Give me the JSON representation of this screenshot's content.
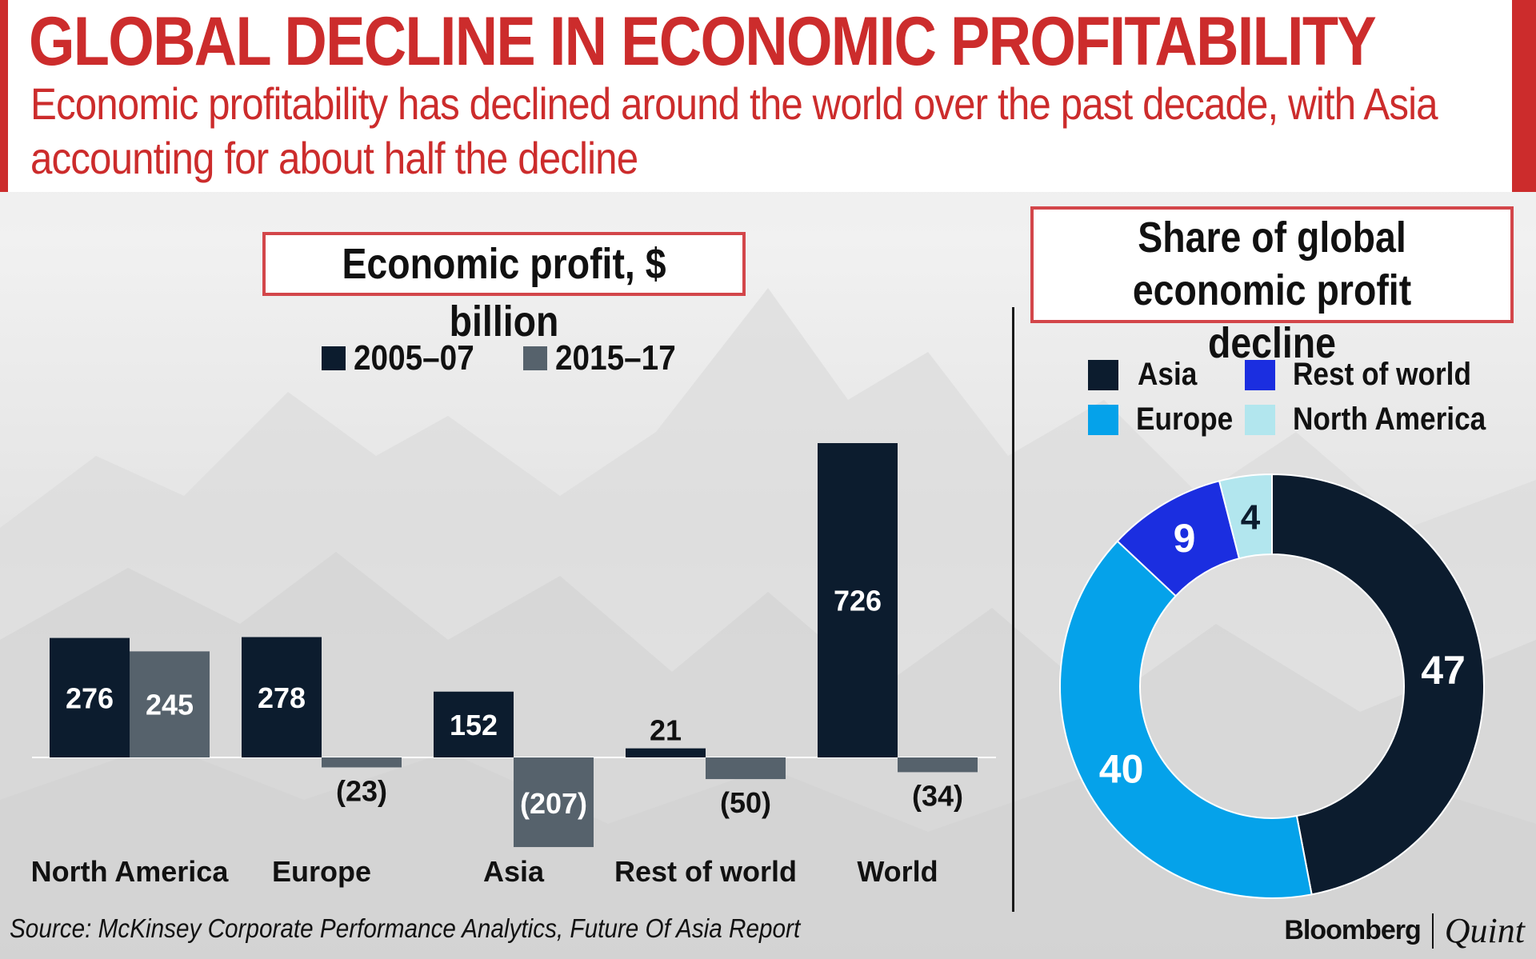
{
  "header": {
    "title": "GLOBAL DECLINE IN ECONOMIC PROFITABILITY",
    "subtitle": "Economic profitability has declined around the world over the past decade, with Asia accounting for about half the decline"
  },
  "colors": {
    "accent_red": "#cc2c2c",
    "series_2005": "#0c1c2e",
    "series_2015": "#56626c",
    "asia": "#0c1c2e",
    "europe": "#05a2ea",
    "rest_of_world": "#1b2ee0",
    "north_america": "#b2e6ee"
  },
  "footer": {
    "source": "Source: McKinsey Corporate Performance Analytics, Future Of Asia Report",
    "brand_bloomberg": "Bloomberg",
    "brand_quint": "Quint"
  },
  "chart_data": [
    {
      "type": "bar",
      "title": "Economic profit, $ billion",
      "categories": [
        "North America",
        "Europe",
        "Asia",
        "Rest of world",
        "World"
      ],
      "series": [
        {
          "name": "2005–07",
          "values": [
            276,
            278,
            152,
            21,
            726
          ],
          "labels": [
            "276",
            "278",
            "152",
            "21",
            "726"
          ]
        },
        {
          "name": "2015–17",
          "values": [
            245,
            -23,
            -207,
            -50,
            -34
          ],
          "labels": [
            "245",
            "(23)",
            "(207)",
            "(50)",
            "(34)"
          ]
        }
      ],
      "legend": [
        "2005–07",
        "2015–17"
      ],
      "xlabel": "",
      "ylabel": "",
      "ylim": [
        -207,
        726
      ]
    },
    {
      "type": "pie",
      "title": "Share of global economic profit decline",
      "categories": [
        "Asia",
        "Europe",
        "Rest of world",
        "North America"
      ],
      "values": [
        47,
        40,
        9,
        4
      ],
      "labels": [
        "47",
        "40",
        "9",
        "4"
      ],
      "legend": [
        "Asia",
        "Rest of world",
        "Europe",
        "North America"
      ]
    }
  ]
}
